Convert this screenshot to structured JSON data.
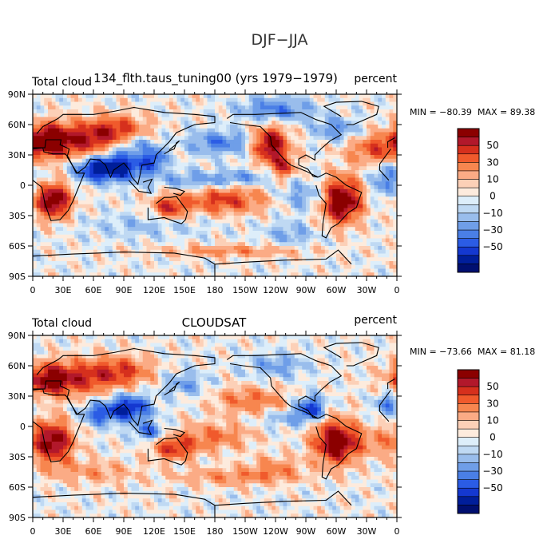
{
  "title": "DJF−JJA",
  "chart_data": [
    {
      "type": "heatmap",
      "title": "134_flth.taus_tuning00 (yrs 1979−1979)",
      "left_label": "Total cloud",
      "right_label": "percent",
      "min_label": "MIN = −80.39",
      "max_label": "MAX =  89.38",
      "xlabels": [
        "0",
        "30E",
        "60E",
        "90E",
        "120E",
        "150E",
        "180",
        "150W",
        "120W",
        "90W",
        "60W",
        "30W",
        "0"
      ],
      "ylabels": [
        "90N",
        "60N",
        "30N",
        "0",
        "30S",
        "60S",
        "90S"
      ],
      "xlim": [
        0,
        360
      ],
      "ylim": [
        -90,
        90
      ],
      "colorbar_ticks": [
        "50",
        "30",
        "10",
        "0",
        "−10",
        "−30",
        "−50"
      ]
    },
    {
      "type": "heatmap",
      "title": "CLOUDSAT",
      "left_label": "Total cloud",
      "right_label": "percent",
      "min_label": "MIN = −73.66",
      "max_label": "MAX =  81.18",
      "xlabels": [
        "0",
        "30E",
        "60E",
        "90E",
        "120E",
        "150E",
        "180",
        "150W",
        "120W",
        "90W",
        "60W",
        "30W",
        "0"
      ],
      "ylabels": [
        "90N",
        "60N",
        "30N",
        "0",
        "30S",
        "60S",
        "90S"
      ],
      "xlim": [
        0,
        360
      ],
      "ylim": [
        -90,
        90
      ],
      "colorbar_ticks": [
        "50",
        "30",
        "10",
        "0",
        "−10",
        "−30",
        "−50"
      ]
    }
  ],
  "colors": {
    "palette": [
      "#8b0000",
      "#b2182b",
      "#d6301d",
      "#f05a2c",
      "#f7864f",
      "#fbab85",
      "#fcd0b7",
      "#fdebdd",
      "#ddeefa",
      "#bfd9f3",
      "#99bdec",
      "#6f9ee8",
      "#4a7fe6",
      "#2b5ce5",
      "#1438d0",
      "#001e9a",
      "#000f70"
    ]
  }
}
